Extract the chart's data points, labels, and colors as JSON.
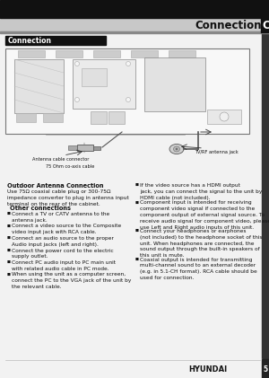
{
  "page_title": "Connection",
  "header_bg": "#111111",
  "header_text_color": "#ffffff",
  "gray_bar_color": "#c8c8c8",
  "section_label": "Connection",
  "section_label_bg": "#111111",
  "section_label_text": "#ffffff",
  "body_bg": "#f0f0f0",
  "page_bg": "#f0f0f0",
  "footer_brand": "HYUNDAI",
  "footer_page": "5",
  "diagram_labels": {
    "antenna_cable_connector": "Antenna cable connector",
    "tvrf_antenna_jack": "TV/RF antenna jack",
    "coax_cable": "75 Ohm co-axis cable"
  },
  "text_color": "#111111",
  "title_font": 8.5,
  "label_font": 5.5,
  "body_font": 4.2,
  "bold_font": 4.8,
  "footer_font": 5.5
}
